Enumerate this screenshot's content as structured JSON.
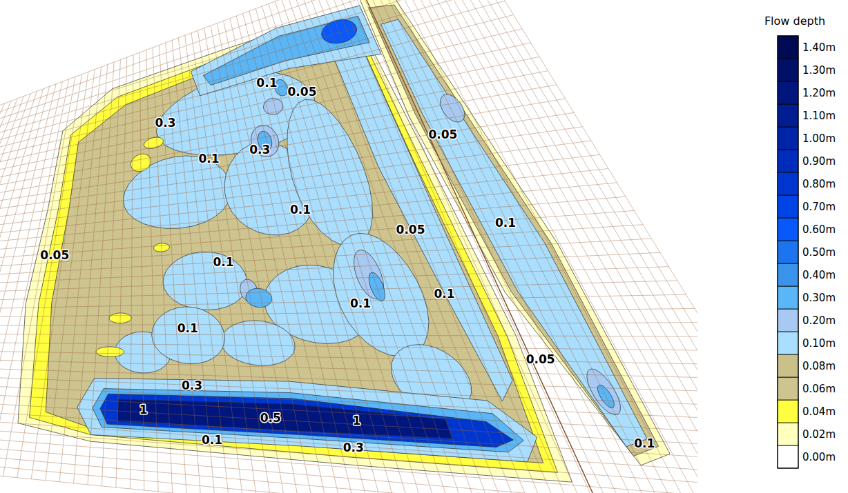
{
  "chart_data": {
    "type": "contour_map",
    "colorbar": {
      "title": "Flow depth",
      "ticks": [
        {
          "value": 0,
          "label": "0.00m"
        },
        {
          "value": 0.02,
          "label": "0.02m"
        },
        {
          "value": 0.04,
          "label": "0.04m"
        },
        {
          "value": 0.06,
          "label": "0.06m"
        },
        {
          "value": 0.08,
          "label": "0.08m"
        },
        {
          "value": 0.1,
          "label": "0.10m"
        },
        {
          "value": 0.2,
          "label": "0.20m"
        },
        {
          "value": 0.3,
          "label": "0.30m"
        },
        {
          "value": 0.4,
          "label": "0.40m"
        },
        {
          "value": 0.5,
          "label": "0.50m"
        },
        {
          "value": 0.6,
          "label": "0.60m"
        },
        {
          "value": 0.7,
          "label": "0.70m"
        },
        {
          "value": 0.8,
          "label": "0.80m"
        },
        {
          "value": 0.9,
          "label": "0.90m"
        },
        {
          "value": 1.0,
          "label": "1.00m"
        },
        {
          "value": 1.1,
          "label": "1.10m"
        },
        {
          "value": 1.2,
          "label": "1.20m"
        },
        {
          "value": 1.3,
          "label": "1.30m"
        },
        {
          "value": 1.4,
          "label": "1.40m"
        }
      ],
      "colors": [
        "#ffffff",
        "#ffffc0",
        "#ffff40",
        "#cdc490",
        "#c9c08a",
        "#a9defe",
        "#a7c9f2",
        "#5ab6f6",
        "#3a94ec",
        "#1c74ee",
        "#0858fa",
        "#0044e6",
        "#0036d0",
        "#002cbc",
        "#0024a8",
        "#001d92",
        "#00167c",
        "#001066",
        "#000a52"
      ]
    },
    "zones": [
      {
        "depth": 0.03,
        "points": [
          [
            -0.06,
            0.05
          ],
          [
            0.1,
            -0.04
          ],
          [
            0.5,
            -0.05
          ],
          [
            0.97,
            -0.05
          ],
          [
            1.0,
            0.3
          ],
          [
            1.02,
            0.7
          ],
          [
            1.0,
            1.03
          ],
          [
            0.6,
            1.03
          ],
          [
            0.1,
            1.02
          ],
          [
            -0.04,
            0.98
          ],
          [
            -0.07,
            0.6
          ],
          [
            -0.06,
            0.3
          ]
        ]
      },
      {
        "depth": 0.05,
        "points": [
          [
            -0.03,
            0.07
          ],
          [
            0.12,
            -0.01
          ],
          [
            0.5,
            -0.03
          ],
          [
            0.96,
            -0.03
          ],
          [
            0.98,
            0.3
          ],
          [
            1.0,
            0.7
          ],
          [
            0.98,
            1.01
          ],
          [
            0.6,
            1.01
          ],
          [
            0.1,
            1.0
          ],
          [
            -0.02,
            0.96
          ],
          [
            -0.04,
            0.6
          ],
          [
            -0.03,
            0.3
          ]
        ]
      },
      {
        "depth": 0.07,
        "points": [
          [
            0.0,
            0.1
          ],
          [
            0.15,
            0.02
          ],
          [
            0.5,
            -0.01
          ],
          [
            0.95,
            -0.01
          ],
          [
            0.96,
            0.3
          ],
          [
            0.98,
            0.7
          ],
          [
            0.96,
            0.99
          ],
          [
            0.6,
            0.99
          ],
          [
            0.1,
            0.98
          ],
          [
            0.01,
            0.94
          ],
          [
            -0.01,
            0.6
          ],
          [
            0.0,
            0.3
          ]
        ]
      },
      {
        "depth": 0.15,
        "points": [
          [
            0.85,
            0.0
          ],
          [
            0.95,
            0.0
          ],
          [
            0.96,
            0.4
          ],
          [
            0.97,
            0.8
          ],
          [
            0.93,
            0.85
          ],
          [
            0.9,
            0.6
          ],
          [
            0.86,
            0.3
          ]
        ]
      },
      {
        "depth": 0.15,
        "center": [
          0.5,
          0.12
        ],
        "radius": [
          0.25,
          0.1
        ]
      },
      {
        "depth": 0.15,
        "center": [
          0.3,
          0.3
        ],
        "radius": [
          0.15,
          0.1
        ]
      },
      {
        "depth": 0.15,
        "center": [
          0.55,
          0.32
        ],
        "radius": [
          0.12,
          0.12
        ]
      },
      {
        "depth": 0.15,
        "center": [
          0.72,
          0.3
        ],
        "radius": [
          0.1,
          0.18
        ]
      },
      {
        "depth": 0.15,
        "center": [
          0.35,
          0.55
        ],
        "radius": [
          0.1,
          0.08
        ]
      },
      {
        "depth": 0.15,
        "center": [
          0.6,
          0.62
        ],
        "radius": [
          0.12,
          0.1
        ]
      },
      {
        "depth": 0.15,
        "center": [
          0.75,
          0.6
        ],
        "radius": [
          0.1,
          0.15
        ]
      },
      {
        "depth": 0.15,
        "center": [
          0.45,
          0.72
        ],
        "radius": [
          0.08,
          0.06
        ]
      },
      {
        "depth": 0.15,
        "center": [
          0.2,
          0.75
        ],
        "radius": [
          0.06,
          0.06
        ]
      },
      {
        "depth": 0.15,
        "center": [
          0.8,
          0.8
        ],
        "radius": [
          0.08,
          0.08
        ]
      },
      {
        "depth": 0.15,
        "center": [
          0.3,
          0.7
        ],
        "radius": [
          0.08,
          0.08
        ]
      },
      {
        "depth": 0.25,
        "center": [
          0.57,
          0.2
        ],
        "radius": [
          0.04,
          0.04
        ]
      },
      {
        "depth": 0.25,
        "center": [
          0.74,
          0.55
        ],
        "radius": [
          0.03,
          0.06
        ]
      },
      {
        "depth": 0.25,
        "center": [
          0.45,
          0.58
        ],
        "radius": [
          0.02,
          0.03
        ]
      },
      {
        "depth": 0.25,
        "center": [
          0.62,
          0.12
        ],
        "radius": [
          0.03,
          0.02
        ]
      },
      {
        "depth": 0.35,
        "center": [
          0.57,
          0.2
        ],
        "radius": [
          0.02,
          0.025
        ]
      },
      {
        "depth": 0.35,
        "center": [
          0.47,
          0.6
        ],
        "radius": [
          0.03,
          0.025
        ]
      },
      {
        "depth": 0.35,
        "center": [
          0.75,
          0.58
        ],
        "radius": [
          0.015,
          0.035
        ]
      },
      {
        "depth": 0.35,
        "center": [
          0.66,
          0.08
        ],
        "radius": [
          0.02,
          0.02
        ]
      },
      {
        "depth": 0.05,
        "center": [
          0.2,
          0.2
        ],
        "radius": [
          0.03,
          0.025
        ]
      },
      {
        "depth": 0.05,
        "center": [
          0.24,
          0.15
        ],
        "radius": [
          0.03,
          0.015
        ]
      },
      {
        "depth": 0.05,
        "center": [
          0.15,
          0.65
        ],
        "radius": [
          0.025,
          0.015
        ]
      },
      {
        "depth": 0.05,
        "center": [
          0.13,
          0.75
        ],
        "radius": [
          0.03,
          0.015
        ]
      },
      {
        "depth": 0.05,
        "center": [
          0.25,
          0.45
        ],
        "radius": [
          0.02,
          0.012
        ]
      },
      {
        "depth": 0.15,
        "points": [
          [
            0.38,
            -0.02
          ],
          [
            0.7,
            -0.06
          ],
          [
            1.0,
            -0.05
          ],
          [
            1.0,
            0.06
          ],
          [
            0.7,
            0.04
          ],
          [
            0.4,
            0.05
          ]
        ]
      },
      {
        "depth": 0.35,
        "points": [
          [
            0.42,
            0.0
          ],
          [
            0.7,
            -0.04
          ],
          [
            0.98,
            -0.03
          ],
          [
            0.98,
            0.03
          ],
          [
            0.7,
            0.02
          ],
          [
            0.44,
            0.03
          ]
        ]
      },
      {
        "depth": 0.6,
        "center": [
          0.9,
          -0.01
        ],
        "radius": [
          0.06,
          0.025
        ]
      },
      {
        "depth": 0.15,
        "points": [
          [
            0.1,
            0.83
          ],
          [
            0.5,
            0.82
          ],
          [
            0.9,
            0.85
          ],
          [
            0.97,
            0.93
          ],
          [
            0.93,
            0.99
          ],
          [
            0.5,
            0.99
          ],
          [
            0.1,
            1.0
          ],
          [
            0.07,
            0.92
          ]
        ]
      },
      {
        "depth": 0.35,
        "points": [
          [
            0.12,
            0.86
          ],
          [
            0.5,
            0.85
          ],
          [
            0.9,
            0.88
          ],
          [
            0.94,
            0.94
          ],
          [
            0.9,
            0.97
          ],
          [
            0.5,
            0.97
          ],
          [
            0.12,
            0.975
          ],
          [
            0.1,
            0.92
          ]
        ]
      },
      {
        "depth": 0.8,
        "points": [
          [
            0.13,
            0.875
          ],
          [
            0.5,
            0.865
          ],
          [
            0.88,
            0.9
          ],
          [
            0.92,
            0.94
          ],
          [
            0.88,
            0.96
          ],
          [
            0.5,
            0.96
          ],
          [
            0.13,
            0.965
          ],
          [
            0.115,
            0.92
          ]
        ]
      },
      {
        "depth": 1.2,
        "points": [
          [
            0.15,
            0.89
          ],
          [
            0.5,
            0.88
          ],
          [
            0.8,
            0.9
          ],
          [
            0.8,
            0.945
          ],
          [
            0.5,
            0.95
          ],
          [
            0.15,
            0.955
          ]
        ]
      },
      {
        "depth": 0.03,
        "points": [
          [
            1.01,
            -0.07
          ],
          [
            1.12,
            -0.05
          ],
          [
            1.22,
            0.5
          ],
          [
            1.22,
            0.95
          ],
          [
            1.15,
            0.98
          ],
          [
            1.04,
            0.6
          ],
          [
            1.0,
            0.2
          ]
        ]
      },
      {
        "depth": 0.07,
        "points": [
          [
            1.025,
            -0.04
          ],
          [
            1.11,
            -0.03
          ],
          [
            1.205,
            0.5
          ],
          [
            1.205,
            0.935
          ],
          [
            1.145,
            0.96
          ],
          [
            1.055,
            0.6
          ],
          [
            1.02,
            0.2
          ]
        ]
      },
      {
        "depth": 0.15,
        "points": [
          [
            1.04,
            0.0
          ],
          [
            1.1,
            0.0
          ],
          [
            1.19,
            0.5
          ],
          [
            1.19,
            0.92
          ],
          [
            1.14,
            0.94
          ],
          [
            1.07,
            0.6
          ],
          [
            1.04,
            0.2
          ]
        ]
      },
      {
        "depth": 0.25,
        "center": [
          1.13,
          0.2
        ],
        "radius": [
          0.03,
          0.03
        ]
      },
      {
        "depth": 0.25,
        "center": [
          1.15,
          0.82
        ],
        "radius": [
          0.025,
          0.05
        ]
      },
      {
        "depth": 0.35,
        "center": [
          1.15,
          0.83
        ],
        "radius": [
          0.012,
          0.025
        ]
      }
    ],
    "contour_labels": [
      {
        "value": 0.05,
        "at": [
          -0.02,
          0.45
        ]
      },
      {
        "value": 0.1,
        "at": [
          0.4,
          0.5
        ]
      },
      {
        "value": 0.1,
        "at": [
          0.3,
          0.68
        ]
      },
      {
        "value": 0.3,
        "at": [
          0.3,
          0.84
        ]
      },
      {
        "value": 1,
        "at": [
          0.2,
          0.915
        ]
      },
      {
        "value": 0.1,
        "at": [
          0.33,
          0.99
        ]
      },
      {
        "value": 0.5,
        "at": [
          0.45,
          0.92
        ]
      },
      {
        "value": 1,
        "at": [
          0.62,
          0.915
        ]
      },
      {
        "value": 0.3,
        "at": [
          0.6,
          0.985
        ]
      },
      {
        "value": 0.1,
        "at": [
          0.7,
          0.62
        ]
      },
      {
        "value": 0.1,
        "at": [
          0.9,
          0.6
        ]
      },
      {
        "value": 0.1,
        "at": [
          0.62,
          0.38
        ]
      },
      {
        "value": 0.3,
        "at": [
          0.55,
          0.22
        ]
      },
      {
        "value": 0.3,
        "at": [
          0.28,
          0.1
        ]
      },
      {
        "value": 0.1,
        "at": [
          0.4,
          0.22
        ]
      },
      {
        "value": 0.1,
        "at": [
          0.62,
          0.06
        ]
      },
      {
        "value": 0.05,
        "at": [
          0.72,
          0.1
        ]
      },
      {
        "value": 0.05,
        "at": [
          1.07,
          0.25
        ]
      },
      {
        "value": 0.1,
        "at": [
          1.12,
          0.45
        ]
      },
      {
        "value": 0.05,
        "at": [
          1.05,
          0.75
        ]
      },
      {
        "value": 0.1,
        "at": [
          1.18,
          0.93
        ]
      },
      {
        "value": 0.05,
        "at": [
          0.88,
          0.45
        ]
      }
    ]
  }
}
